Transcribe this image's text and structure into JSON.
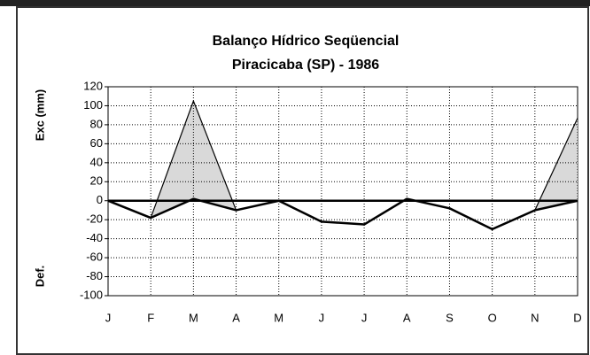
{
  "chart_data": {
    "type": "line",
    "title": "Balanço Hídrico Seqüencial",
    "subtitle": "Piracicaba (SP) - 1986",
    "y_label_upper": "Exc (mm)",
    "y_label_lower": "Def.",
    "categories": [
      "J",
      "F",
      "M",
      "A",
      "M",
      "J",
      "J",
      "A",
      "S",
      "O",
      "N",
      "D"
    ],
    "series": [
      {
        "color": "#000000",
        "values": [
          0,
          -18,
          105,
          -10,
          0,
          -22,
          -25,
          2,
          -8,
          -30,
          -10,
          87
        ]
      },
      {
        "color": "#000000",
        "values": [
          0,
          -18,
          2,
          -10,
          0,
          -22,
          -25,
          2,
          -8,
          -30,
          -10,
          0
        ]
      }
    ],
    "fill_color": "#d9d9d9",
    "ylim": [
      -100,
      120
    ],
    "yticks": [
      -100,
      -80,
      -60,
      -40,
      -20,
      0,
      20,
      40,
      60,
      80,
      100,
      120
    ],
    "grid": true
  }
}
